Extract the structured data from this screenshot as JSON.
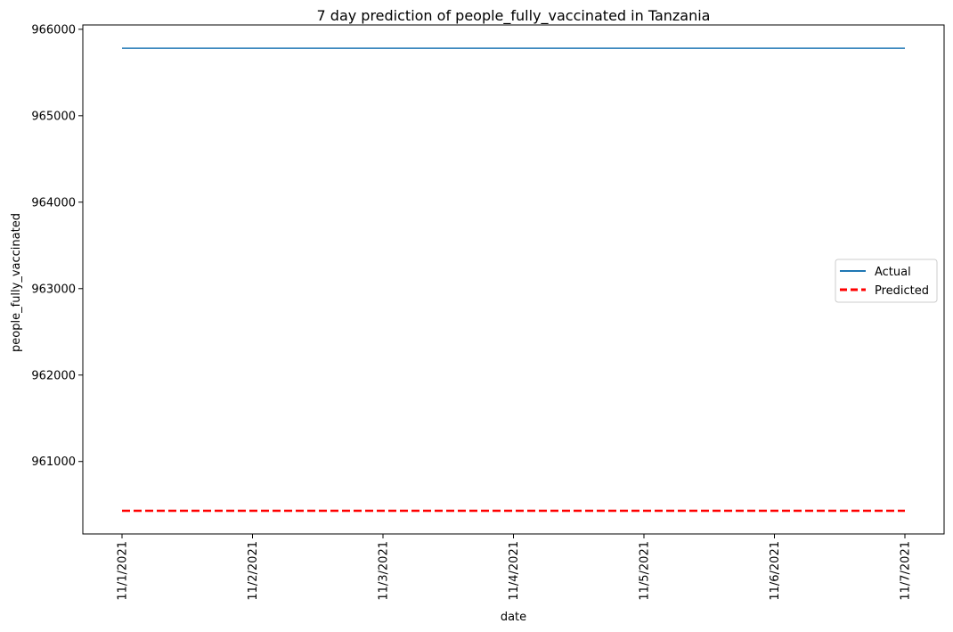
{
  "chart_data": {
    "type": "line",
    "title": "7 day prediction of people_fully_vaccinated in Tanzania",
    "xlabel": "date",
    "ylabel": "people_fully_vaccinated",
    "x": [
      "11/1/2021",
      "11/2/2021",
      "11/3/2021",
      "11/4/2021",
      "11/5/2021",
      "11/6/2021",
      "11/7/2021"
    ],
    "ylim": [
      960162,
      966050
    ],
    "yticks": [
      "961000",
      "962000",
      "963000",
      "964000",
      "965000",
      "966000"
    ],
    "grid": false,
    "legend_position": "center-right",
    "series": [
      {
        "name": "Actual",
        "values": [
          965780,
          965780,
          965780,
          965780,
          965780,
          965780,
          965780
        ],
        "color": "#1f77b4",
        "style": "solid"
      },
      {
        "name": "Predicted",
        "values": [
          960430,
          960430,
          960430,
          960430,
          960430,
          960430,
          960430
        ],
        "color": "#ff0000",
        "style": "dashed"
      }
    ]
  }
}
